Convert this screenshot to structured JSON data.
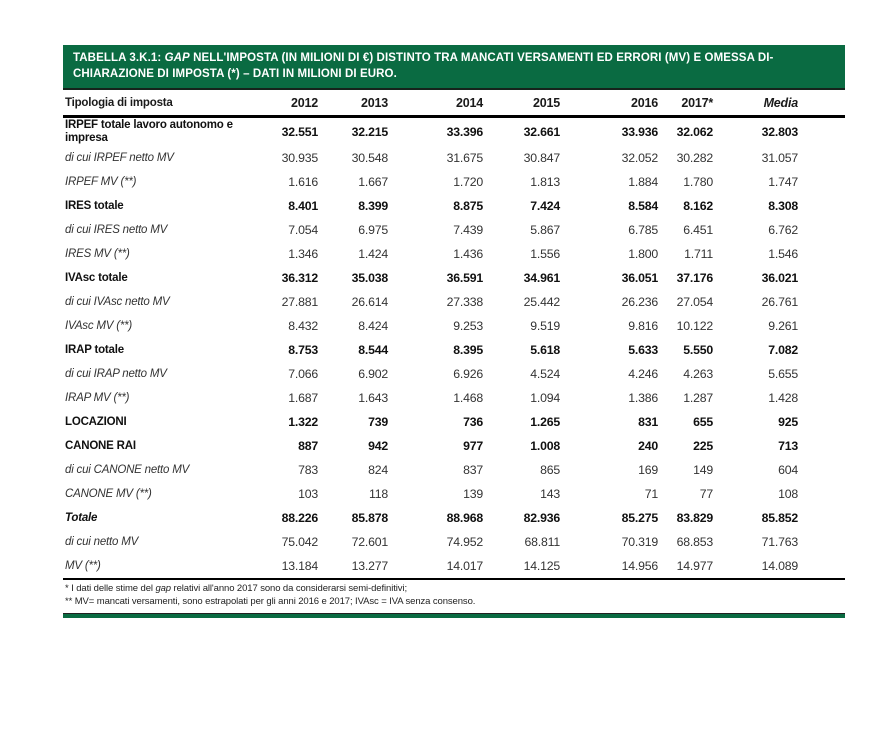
{
  "colors": {
    "header_green": "#0a6b42",
    "rule_black": "#000000",
    "text": "#1a1a1a"
  },
  "header": {
    "title_prefix": "TABELLA 3.K.1: ",
    "title_gap": "GAP",
    "title_rest": " NELL'IMPOSTA (IN MILIONI DI €) DISTINTO TRA MANCATI VERSAMENTI ED ERRORI (MV) E OMESSA DI-CHIARAZIONE DI IMPOSTA (*) – DATI IN MILIONI DI EURO."
  },
  "columns": [
    "Tipologia di imposta",
    "2012",
    "2013",
    "2014",
    "2015",
    "2016",
    "2017*",
    "Media"
  ],
  "rows": [
    {
      "label": "IRPEF totale lavoro autonomo e impresa",
      "style": "total",
      "values": [
        "32.551",
        "32.215",
        "33.396",
        "32.661",
        "33.936",
        "32.062",
        "32.803"
      ]
    },
    {
      "label": "di cui IRPEF netto MV",
      "style": "sub",
      "values": [
        "30.935",
        "30.548",
        "31.675",
        "30.847",
        "32.052",
        "30.282",
        "31.057"
      ]
    },
    {
      "label": "IRPEF MV (**)",
      "style": "sub",
      "values": [
        "1.616",
        "1.667",
        "1.720",
        "1.813",
        "1.884",
        "1.780",
        "1.747"
      ]
    },
    {
      "label": "IRES totale",
      "style": "total",
      "values": [
        "8.401",
        "8.399",
        "8.875",
        "7.424",
        "8.584",
        "8.162",
        "8.308"
      ]
    },
    {
      "label": "di cui IRES netto MV",
      "style": "sub",
      "values": [
        "7.054",
        "6.975",
        "7.439",
        "5.867",
        "6.785",
        "6.451",
        "6.762"
      ]
    },
    {
      "label": "IRES MV (**)",
      "style": "sub",
      "values": [
        "1.346",
        "1.424",
        "1.436",
        "1.556",
        "1.800",
        "1.711",
        "1.546"
      ]
    },
    {
      "label": "IVAsc totale",
      "style": "total",
      "values": [
        "36.312",
        "35.038",
        "36.591",
        "34.961",
        "36.051",
        "37.176",
        "36.021"
      ]
    },
    {
      "label": "di cui IVAsc netto MV",
      "style": "sub",
      "values": [
        "27.881",
        "26.614",
        "27.338",
        "25.442",
        "26.236",
        "27.054",
        "26.761"
      ]
    },
    {
      "label": "IVAsc MV (**)",
      "style": "sub",
      "values": [
        "8.432",
        "8.424",
        "9.253",
        "9.519",
        "9.816",
        "10.122",
        "9.261"
      ]
    },
    {
      "label": "IRAP totale",
      "style": "total",
      "values": [
        "8.753",
        "8.544",
        "8.395",
        "5.618",
        "5.633",
        "5.550",
        "7.082"
      ]
    },
    {
      "label": "di cui IRAP netto MV",
      "style": "sub",
      "values": [
        "7.066",
        "6.902",
        "6.926",
        "4.524",
        "4.246",
        "4.263",
        "5.655"
      ]
    },
    {
      "label": "IRAP MV (**)",
      "style": "sub",
      "values": [
        "1.687",
        "1.643",
        "1.468",
        "1.094",
        "1.386",
        "1.287",
        "1.428"
      ]
    },
    {
      "label": "LOCAZIONI",
      "style": "total",
      "values": [
        "1.322",
        "739",
        "736",
        "1.265",
        "831",
        "655",
        "925"
      ]
    },
    {
      "label": "CANONE RAI",
      "style": "total",
      "values": [
        "887",
        "942",
        "977",
        "1.008",
        "240",
        "225",
        "713"
      ]
    },
    {
      "label": "di cui CANONE netto MV",
      "style": "sub",
      "values": [
        "783",
        "824",
        "837",
        "865",
        "169",
        "149",
        "604"
      ]
    },
    {
      "label": "CANONE MV (**)",
      "style": "sub",
      "values": [
        "103",
        "118",
        "139",
        "143",
        "71",
        "77",
        "108"
      ]
    },
    {
      "label": "Totale",
      "style": "grand",
      "values": [
        "88.226",
        "85.878",
        "88.968",
        "82.936",
        "85.275",
        "83.829",
        "85.852"
      ]
    },
    {
      "label": "di cui  netto MV",
      "style": "sub",
      "values": [
        "75.042",
        "72.601",
        "74.952",
        "68.811",
        "70.319",
        "68.853",
        "71.763"
      ]
    },
    {
      "label": "MV (**)",
      "style": "sub",
      "values": [
        "13.184",
        "13.277",
        "14.017",
        "14.125",
        "14.956",
        "14.977",
        "14.089"
      ]
    }
  ],
  "footnotes": {
    "fn1_pre": "* I dati delle stime del ",
    "fn1_italic": "gap",
    "fn1_post": " relativi all'anno 2017  sono da considerarsi semi-definitivi;",
    "fn2": "** MV= mancati versamenti, sono estrapolati per gli anni 2016 e 2017; IVAsc = IVA senza consenso."
  }
}
